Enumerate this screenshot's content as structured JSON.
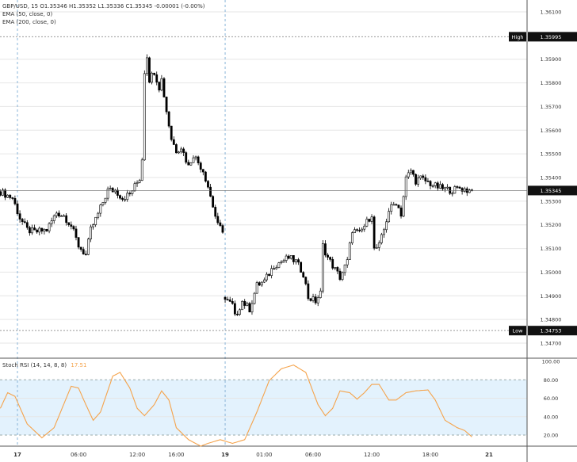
{
  "chart_data": [
    {
      "type": "candlestick",
      "legend": {
        "symbol_line": "GBP/USD, 15  O1.35346  H1.35352  L1.35336  C1.35345  -0.00001 (-0.00%)",
        "indicators": [
          "EMA (50, close, 0)",
          "EMA (200, close, 0)"
        ]
      },
      "y_ticks": [
        "1.36100",
        "1.35900",
        "1.35800",
        "1.35700",
        "1.35600",
        "1.35500",
        "1.35400",
        "1.35300",
        "1.35200",
        "1.35100",
        "1.35000",
        "1.34900",
        "1.34800",
        "1.34700"
      ],
      "ylim": [
        1.3465,
        1.3615
      ],
      "grid": true,
      "high": {
        "label": "High",
        "value": "1.35995"
      },
      "low": {
        "label": "Low",
        "value": "1.34753"
      },
      "last": {
        "value": "1.35345"
      },
      "close_path_bar_price": [
        [
          0,
          1.3534
        ],
        [
          5,
          1.35313
        ],
        [
          8,
          1.35229
        ],
        [
          11,
          1.35179
        ],
        [
          14,
          1.35169
        ],
        [
          19,
          1.35179
        ],
        [
          23,
          1.35252
        ],
        [
          26,
          1.35239
        ],
        [
          29,
          1.35196
        ],
        [
          32,
          1.35112
        ],
        [
          35,
          1.35072
        ],
        [
          37,
          1.35179
        ],
        [
          40,
          1.35246
        ],
        [
          44,
          1.35346
        ],
        [
          47,
          1.35346
        ],
        [
          50,
          1.35313
        ],
        [
          53,
          1.3533
        ],
        [
          57,
          1.35396
        ],
        [
          58,
          1.3548
        ],
        [
          59,
          1.35849
        ],
        [
          60,
          1.35916
        ],
        [
          61,
          1.35815
        ],
        [
          63,
          1.35849
        ],
        [
          65,
          1.35782
        ],
        [
          66,
          1.35815
        ],
        [
          68,
          1.35681
        ],
        [
          70,
          1.35564
        ],
        [
          72,
          1.35514
        ],
        [
          74,
          1.3553
        ],
        [
          77,
          1.35447
        ],
        [
          79,
          1.35497
        ],
        [
          83,
          1.3543
        ],
        [
          85,
          1.35363
        ],
        [
          87,
          1.35279
        ],
        [
          89,
          1.35196
        ],
        [
          91,
          1.35179
        ],
        [
          92,
          1.34884
        ],
        [
          95,
          1.3486
        ],
        [
          96,
          1.3481
        ],
        [
          99,
          1.34877
        ],
        [
          102,
          1.34844
        ],
        [
          105,
          1.34944
        ],
        [
          108,
          1.34961
        ],
        [
          112,
          1.35028
        ],
        [
          115,
          1.35045
        ],
        [
          118,
          1.35061
        ],
        [
          121,
          1.35045
        ],
        [
          124,
          1.34994
        ],
        [
          126,
          1.34894
        ],
        [
          129,
          1.34877
        ],
        [
          131,
          1.34911
        ],
        [
          132,
          1.35112
        ],
        [
          134,
          1.35061
        ],
        [
          137,
          1.35011
        ],
        [
          139,
          1.34978
        ],
        [
          142,
          1.35045
        ],
        [
          144,
          1.35179
        ],
        [
          147,
          1.35162
        ],
        [
          150,
          1.35212
        ],
        [
          152,
          1.35246
        ],
        [
          153,
          1.35095
        ],
        [
          155,
          1.35112
        ],
        [
          157,
          1.35179
        ],
        [
          159,
          1.35262
        ],
        [
          162,
          1.35296
        ],
        [
          164,
          1.35246
        ],
        [
          166,
          1.35396
        ],
        [
          168,
          1.3543
        ],
        [
          170,
          1.35386
        ],
        [
          172,
          1.35396
        ],
        [
          175,
          1.3538
        ],
        [
          178,
          1.35363
        ],
        [
          181,
          1.35353
        ],
        [
          185,
          1.35346
        ],
        [
          188,
          1.35356
        ],
        [
          191,
          1.35346
        ],
        [
          193,
          1.35345
        ]
      ]
    },
    {
      "type": "line",
      "title": "Stoch RSI (14, 14, 8, 8)",
      "last_value": "17.51",
      "y_ticks": [
        "100.00",
        "80.00",
        "60.00",
        "40.00",
        "20.00"
      ],
      "ylim": [
        0,
        100
      ],
      "band": [
        20,
        80
      ],
      "series_bar_value": [
        [
          0,
          49
        ],
        [
          3,
          66
        ],
        [
          6,
          62
        ],
        [
          11,
          32
        ],
        [
          17,
          17
        ],
        [
          22,
          28
        ],
        [
          29,
          73
        ],
        [
          32,
          71
        ],
        [
          35,
          53
        ],
        [
          38,
          36
        ],
        [
          41,
          45
        ],
        [
          46,
          84
        ],
        [
          49,
          88
        ],
        [
          53,
          71
        ],
        [
          56,
          49
        ],
        [
          59,
          41
        ],
        [
          63,
          53
        ],
        [
          66,
          68
        ],
        [
          69,
          58
        ],
        [
          72,
          28
        ],
        [
          77,
          15
        ],
        [
          82,
          8
        ],
        [
          85,
          11
        ],
        [
          90,
          15
        ],
        [
          95,
          11
        ],
        [
          100,
          15
        ],
        [
          105,
          45
        ],
        [
          110,
          79
        ],
        [
          115,
          92
        ],
        [
          120,
          96
        ],
        [
          125,
          88
        ],
        [
          130,
          53
        ],
        [
          133,
          41
        ],
        [
          136,
          49
        ],
        [
          139,
          68
        ],
        [
          143,
          66
        ],
        [
          146,
          59
        ],
        [
          149,
          66
        ],
        [
          152,
          75
        ],
        [
          155,
          75
        ],
        [
          159,
          58
        ],
        [
          162,
          58
        ],
        [
          166,
          66
        ],
        [
          170,
          68
        ],
        [
          175,
          69
        ],
        [
          178,
          58
        ],
        [
          182,
          36
        ],
        [
          187,
          28
        ],
        [
          190,
          25
        ],
        [
          193,
          18
        ]
      ]
    }
  ],
  "x_axis": {
    "ticks": [
      {
        "bar": 7,
        "label": "17",
        "bold": true
      },
      {
        "bar": 32,
        "label": "06:00"
      },
      {
        "bar": 56,
        "label": "12:00"
      },
      {
        "bar": 72,
        "label": "16:00"
      },
      {
        "bar": 92,
        "label": "19",
        "bold": true
      },
      {
        "bar": 108,
        "label": "01:00"
      },
      {
        "bar": 128,
        "label": "06:00"
      },
      {
        "bar": 152,
        "label": "12:00"
      },
      {
        "bar": 176,
        "label": "18:00"
      },
      {
        "bar": 200,
        "label": "21",
        "bold": true
      }
    ]
  },
  "colors": {
    "up": "#ffffff",
    "down": "#000000",
    "rsi": "#f5a34b",
    "band": "#e3f2fd",
    "separator": "#8ab4d8",
    "grid": "#e6e6e6"
  }
}
